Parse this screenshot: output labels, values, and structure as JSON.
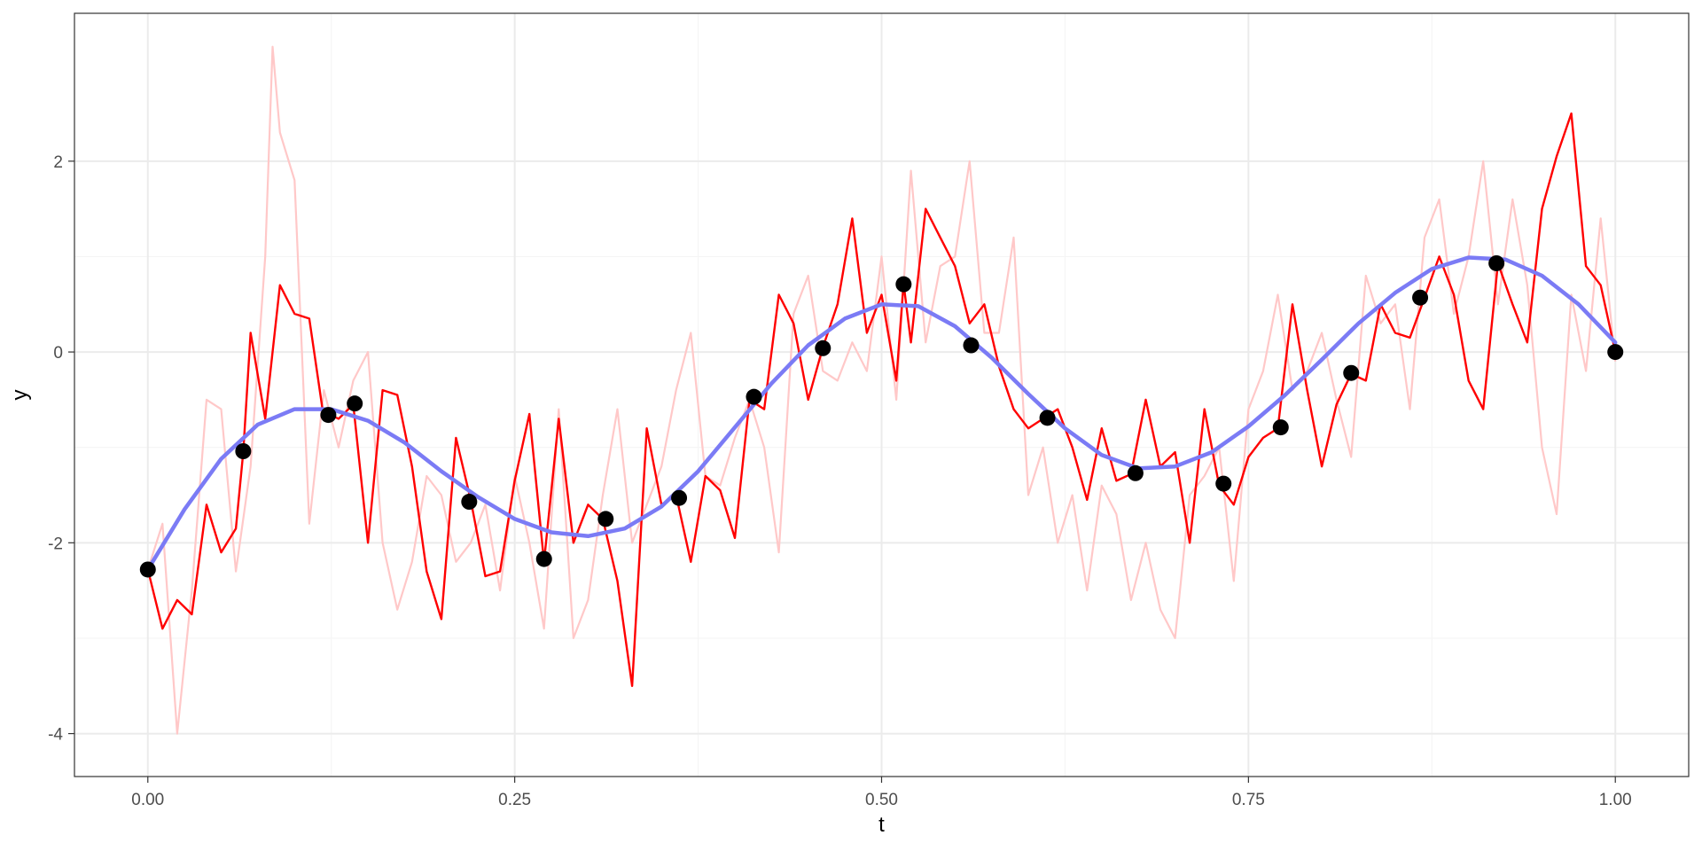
{
  "chart_data": {
    "type": "line",
    "xlabel": "t",
    "ylabel": "y",
    "xlim": [
      -0.05,
      1.05
    ],
    "ylim": [
      -4.45,
      3.55
    ],
    "x_ticks": [
      0.0,
      0.25,
      0.5,
      0.75,
      1.0
    ],
    "x_tick_labels": [
      "0.00",
      "0.25",
      "0.50",
      "0.75",
      "1.00"
    ],
    "y_ticks": [
      -4,
      -2,
      0,
      2
    ],
    "y_tick_labels": [
      "-4",
      "-2",
      "0",
      "2"
    ],
    "grid": true,
    "legend": "none",
    "colors": {
      "mean_curve": "#7b7bf5",
      "sample_path": "#ff0000",
      "faint_path": "#ffc8c8",
      "points": "#000000",
      "grid_major": "#ebebeb",
      "grid_minor": "#f5f5f5",
      "panel_border": "#333333",
      "tick_text": "#4d4d4d"
    },
    "series": [
      {
        "role": "mean-curve",
        "x": [
          0.0,
          0.025,
          0.05,
          0.075,
          0.1,
          0.125,
          0.15,
          0.175,
          0.2,
          0.225,
          0.25,
          0.275,
          0.3,
          0.325,
          0.35,
          0.375,
          0.4,
          0.425,
          0.45,
          0.475,
          0.5,
          0.525,
          0.55,
          0.575,
          0.6,
          0.625,
          0.65,
          0.675,
          0.7,
          0.725,
          0.75,
          0.775,
          0.8,
          0.825,
          0.85,
          0.875,
          0.9,
          0.925,
          0.95,
          0.975,
          1.0
        ],
        "y": [
          -2.28,
          -1.65,
          -1.12,
          -0.76,
          -0.6,
          -0.6,
          -0.72,
          -0.95,
          -1.25,
          -1.52,
          -1.75,
          -1.89,
          -1.93,
          -1.85,
          -1.62,
          -1.25,
          -0.79,
          -0.33,
          0.07,
          0.35,
          0.5,
          0.48,
          0.27,
          -0.06,
          -0.44,
          -0.8,
          -1.08,
          -1.22,
          -1.2,
          -1.05,
          -0.78,
          -0.45,
          -0.08,
          0.3,
          0.62,
          0.87,
          0.99,
          0.97,
          0.8,
          0.5,
          0.1
        ]
      },
      {
        "role": "sample-path",
        "x": [
          0.0,
          0.01,
          0.02,
          0.03,
          0.04,
          0.05,
          0.06,
          0.065,
          0.07,
          0.08,
          0.09,
          0.1,
          0.11,
          0.12,
          0.123,
          0.13,
          0.14,
          0.15,
          0.16,
          0.17,
          0.18,
          0.19,
          0.2,
          0.21,
          0.22,
          0.23,
          0.24,
          0.25,
          0.26,
          0.27,
          0.28,
          0.29,
          0.3,
          0.31,
          0.32,
          0.33,
          0.34,
          0.35,
          0.36,
          0.37,
          0.38,
          0.39,
          0.4,
          0.41,
          0.42,
          0.43,
          0.44,
          0.45,
          0.46,
          0.47,
          0.48,
          0.49,
          0.5,
          0.51,
          0.515,
          0.52,
          0.53,
          0.54,
          0.55,
          0.56,
          0.57,
          0.58,
          0.59,
          0.6,
          0.61,
          0.62,
          0.63,
          0.64,
          0.65,
          0.66,
          0.67,
          0.68,
          0.69,
          0.7,
          0.71,
          0.72,
          0.73,
          0.74,
          0.75,
          0.76,
          0.77,
          0.78,
          0.79,
          0.8,
          0.81,
          0.82,
          0.83,
          0.84,
          0.85,
          0.86,
          0.87,
          0.88,
          0.89,
          0.9,
          0.91,
          0.92,
          0.93,
          0.94,
          0.95,
          0.96,
          0.97,
          0.98,
          0.99,
          1.0
        ],
        "y": [
          -2.28,
          -2.9,
          -2.6,
          -2.75,
          -1.6,
          -2.1,
          -1.85,
          -1.05,
          0.2,
          -0.7,
          0.7,
          0.4,
          0.35,
          -0.7,
          -0.65,
          -0.7,
          -0.55,
          -2.0,
          -0.4,
          -0.45,
          -1.2,
          -2.3,
          -2.8,
          -0.9,
          -1.55,
          -2.35,
          -2.3,
          -1.35,
          -0.65,
          -2.2,
          -0.7,
          -2.0,
          -1.6,
          -1.75,
          -2.4,
          -3.5,
          -0.8,
          -1.6,
          -1.5,
          -2.2,
          -1.3,
          -1.45,
          -1.95,
          -0.5,
          -0.6,
          0.6,
          0.3,
          -0.5,
          0.05,
          0.5,
          1.4,
          0.2,
          0.6,
          -0.3,
          0.72,
          0.1,
          1.5,
          1.2,
          0.9,
          0.3,
          0.5,
          -0.15,
          -0.6,
          -0.8,
          -0.7,
          -0.6,
          -1.0,
          -1.55,
          -0.8,
          -1.35,
          -1.28,
          -0.5,
          -1.2,
          -1.05,
          -2.0,
          -0.6,
          -1.4,
          -1.6,
          -1.1,
          -0.9,
          -0.8,
          0.5,
          -0.4,
          -1.2,
          -0.55,
          -0.23,
          -0.3,
          0.5,
          0.2,
          0.15,
          0.57,
          1.0,
          0.6,
          -0.3,
          -0.6,
          0.93,
          0.5,
          0.1,
          1.5,
          2.05,
          2.5,
          0.9,
          0.7,
          0.0
        ]
      },
      {
        "role": "faint-path",
        "x": [
          0.0,
          0.01,
          0.02,
          0.03,
          0.04,
          0.05,
          0.06,
          0.07,
          0.08,
          0.085,
          0.09,
          0.1,
          0.11,
          0.12,
          0.13,
          0.14,
          0.15,
          0.16,
          0.17,
          0.18,
          0.19,
          0.2,
          0.21,
          0.22,
          0.23,
          0.24,
          0.25,
          0.26,
          0.27,
          0.28,
          0.29,
          0.3,
          0.31,
          0.32,
          0.33,
          0.34,
          0.35,
          0.36,
          0.37,
          0.38,
          0.39,
          0.4,
          0.41,
          0.42,
          0.43,
          0.44,
          0.45,
          0.46,
          0.47,
          0.48,
          0.49,
          0.5,
          0.51,
          0.52,
          0.53,
          0.54,
          0.55,
          0.56,
          0.57,
          0.58,
          0.59,
          0.6,
          0.61,
          0.62,
          0.63,
          0.64,
          0.65,
          0.66,
          0.67,
          0.68,
          0.69,
          0.7,
          0.71,
          0.72,
          0.73,
          0.74,
          0.75,
          0.76,
          0.77,
          0.78,
          0.79,
          0.8,
          0.81,
          0.82,
          0.83,
          0.84,
          0.85,
          0.86,
          0.87,
          0.88,
          0.89,
          0.9,
          0.91,
          0.92,
          0.93,
          0.94,
          0.95,
          0.96,
          0.97,
          0.98,
          0.99,
          1.0
        ],
        "y": [
          -2.28,
          -1.8,
          -4.0,
          -2.5,
          -0.5,
          -0.6,
          -2.3,
          -1.2,
          1.0,
          3.2,
          2.3,
          1.8,
          -1.8,
          -0.4,
          -1.0,
          -0.3,
          0.0,
          -2.0,
          -2.7,
          -2.2,
          -1.3,
          -1.5,
          -2.2,
          -2.0,
          -1.6,
          -2.5,
          -1.3,
          -2.0,
          -2.9,
          -0.6,
          -3.0,
          -2.6,
          -1.5,
          -0.6,
          -2.0,
          -1.6,
          -1.2,
          -0.4,
          0.2,
          -1.3,
          -1.4,
          -0.9,
          -0.5,
          -1.0,
          -2.1,
          0.4,
          0.8,
          -0.2,
          -0.3,
          0.1,
          -0.2,
          1.0,
          -0.5,
          1.9,
          0.1,
          0.9,
          1.0,
          2.0,
          0.2,
          0.2,
          1.2,
          -1.5,
          -1.0,
          -2.0,
          -1.5,
          -2.5,
          -1.4,
          -1.7,
          -2.6,
          -2.0,
          -2.7,
          -3.0,
          -1.5,
          -1.3,
          -1.0,
          -2.4,
          -0.6,
          -0.2,
          0.6,
          -0.4,
          -0.2,
          0.2,
          -0.5,
          -1.1,
          0.8,
          0.3,
          0.5,
          -0.6,
          1.2,
          1.6,
          0.4,
          1.0,
          2.0,
          0.5,
          1.6,
          0.7,
          -1.0,
          -1.7,
          0.6,
          -0.2,
          1.4,
          -0.1
        ]
      },
      {
        "role": "observations",
        "x": [
          0.0,
          0.065,
          0.123,
          0.141,
          0.219,
          0.27,
          0.312,
          0.362,
          0.413,
          0.46,
          0.515,
          0.561,
          0.613,
          0.673,
          0.733,
          0.772,
          0.82,
          0.867,
          0.919,
          1.0
        ],
        "y": [
          -2.28,
          -1.04,
          -0.66,
          -0.54,
          -1.57,
          -2.17,
          -1.75,
          -1.53,
          -0.47,
          0.04,
          0.71,
          0.07,
          -0.69,
          -1.27,
          -1.38,
          -0.79,
          -0.22,
          0.57,
          0.93,
          0.0
        ]
      }
    ]
  }
}
